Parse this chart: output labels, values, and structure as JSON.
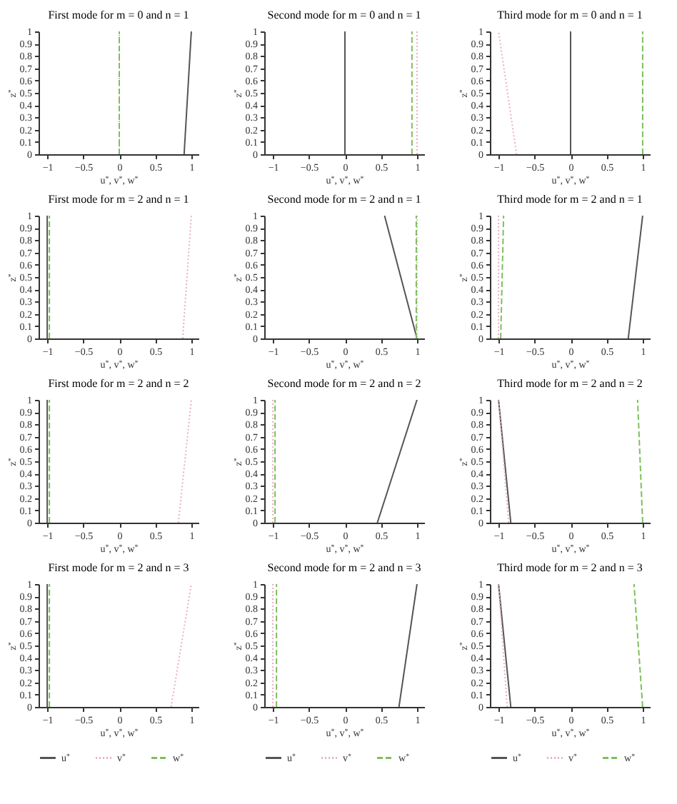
{
  "chart_data": [
    {
      "type": "line",
      "title": "First mode for m = 0 and n = 1",
      "xlabel": "u$^{*}$, v$^{*}$, w$^{*}$",
      "ylabel": "z$^{*}$",
      "xlim": [
        -1.12,
        1.1
      ],
      "xticks": [
        -1,
        -0.5,
        0,
        0.5,
        1
      ],
      "ylim": [
        0,
        1
      ],
      "yticks": [
        0,
        0.1,
        0.2,
        0.3,
        0.4,
        0.5,
        0.6,
        0.7,
        0.8,
        0.9,
        1
      ],
      "series": [
        {
          "color": "#555555",
          "line_style": "solid",
          "x": [
            0.9,
            1
          ],
          "values": [
            0,
            1
          ]
        },
        {
          "color": "#e8b0c0",
          "line_style": "dotted",
          "x": [
            0,
            0
          ],
          "values": [
            0,
            1
          ]
        },
        {
          "color": "#7cc05a",
          "line_style": "dashed",
          "x": [
            0,
            0
          ],
          "values": [
            0,
            1
          ]
        }
      ]
    },
    {
      "type": "line",
      "title": "Second mode for m = 0 and n = 1",
      "xlabel": "u$^{*}$, v$^{*}$, w$^{*}$",
      "ylabel": "z$^{*}$",
      "xlim": [
        -1.12,
        1.1
      ],
      "xticks": [
        -1,
        -0.5,
        0,
        0.5,
        1
      ],
      "ylim": [
        0,
        1
      ],
      "yticks": [
        0,
        0.1,
        0.2,
        0.3,
        0.4,
        0.5,
        0.6,
        0.7,
        0.8,
        0.9,
        1
      ],
      "series": [
        {
          "color": "#555555",
          "line_style": "solid",
          "x": [
            0,
            0
          ],
          "values": [
            0,
            1
          ]
        },
        {
          "color": "#e8b0c0",
          "line_style": "dotted",
          "x": [
            1,
            1
          ],
          "values": [
            0,
            1
          ]
        },
        {
          "color": "#7cc05a",
          "line_style": "dashed",
          "x": [
            0.93,
            0.93
          ],
          "values": [
            0,
            1
          ]
        }
      ]
    },
    {
      "type": "line",
      "title": "Third mode for m = 0 and n = 1",
      "xlabel": "u$^{*}$, v$^{*}$, w$^{*}$",
      "ylabel": "z$^{*}$",
      "xlim": [
        -1.12,
        1.1
      ],
      "xticks": [
        -1,
        -0.5,
        0,
        0.5,
        1
      ],
      "ylim": [
        0,
        1
      ],
      "yticks": [
        0,
        0.1,
        0.2,
        0.3,
        0.4,
        0.5,
        0.6,
        0.7,
        0.8,
        0.9,
        1
      ],
      "series": [
        {
          "color": "#555555",
          "line_style": "solid",
          "x": [
            0,
            0
          ],
          "values": [
            0,
            1
          ]
        },
        {
          "color": "#e8b0c0",
          "line_style": "dotted",
          "x": [
            -0.75,
            -1
          ],
          "values": [
            0,
            1
          ]
        },
        {
          "color": "#7cc05a",
          "line_style": "dashed",
          "x": [
            1,
            1
          ],
          "values": [
            0,
            1
          ]
        }
      ]
    },
    {
      "type": "line",
      "title": "First mode for m = 2 and n = 1",
      "xlabel": "u$^{*}$, v$^{*}$, w$^{*}$",
      "ylabel": "z$^{*}$",
      "xlim": [
        -1.12,
        1.1
      ],
      "xticks": [
        -1,
        -0.5,
        0,
        0.5,
        1
      ],
      "ylim": [
        0,
        1
      ],
      "yticks": [
        0,
        0.1,
        0.2,
        0.3,
        0.4,
        0.5,
        0.6,
        0.7,
        0.8,
        0.9,
        1
      ],
      "series": [
        {
          "color": "#555555",
          "line_style": "solid",
          "x": [
            -1,
            -1
          ],
          "values": [
            0,
            1
          ]
        },
        {
          "color": "#e8b0c0",
          "line_style": "dotted",
          "x": [
            0.88,
            1
          ],
          "values": [
            0,
            1
          ]
        },
        {
          "color": "#7cc05a",
          "line_style": "dashed",
          "x": [
            -0.97,
            -0.97
          ],
          "values": [
            0,
            1
          ]
        }
      ]
    },
    {
      "type": "line",
      "title": "Second mode for m = 2 and n = 1",
      "xlabel": "u$^{*}$, v$^{*}$, w$^{*}$",
      "ylabel": "z$^{*}$",
      "xlim": [
        -1.12,
        1.1
      ],
      "xticks": [
        -1,
        -0.5,
        0,
        0.5,
        1
      ],
      "ylim": [
        0,
        1
      ],
      "yticks": [
        0,
        0.1,
        0.2,
        0.3,
        0.4,
        0.5,
        0.6,
        0.7,
        0.8,
        0.9,
        1
      ],
      "series": [
        {
          "color": "#555555",
          "line_style": "solid",
          "x": [
            1,
            0.55
          ],
          "values": [
            0,
            1
          ]
        },
        {
          "color": "#e8b0c0",
          "line_style": "dotted",
          "x": [
            1,
            1
          ],
          "values": [
            0,
            1
          ]
        },
        {
          "color": "#7cc05a",
          "line_style": "dashed",
          "x": [
            0.99,
            0.99
          ],
          "values": [
            0,
            1
          ]
        }
      ]
    },
    {
      "type": "line",
      "title": "Third mode for m = 2 and n = 1",
      "xlabel": "u$^{*}$, v$^{*}$, w$^{*}$",
      "ylabel": "z$^{*}$",
      "xlim": [
        -1.12,
        1.1
      ],
      "xticks": [
        -1,
        -0.5,
        0,
        0.5,
        1
      ],
      "ylim": [
        0,
        1
      ],
      "yticks": [
        0,
        0.1,
        0.2,
        0.3,
        0.4,
        0.5,
        0.6,
        0.7,
        0.8,
        0.9,
        1
      ],
      "series": [
        {
          "color": "#555555",
          "line_style": "solid",
          "x": [
            0.8,
            1
          ],
          "values": [
            0,
            1
          ]
        },
        {
          "color": "#e8b0c0",
          "line_style": "dotted",
          "x": [
            -1,
            -1
          ],
          "values": [
            0,
            1
          ]
        },
        {
          "color": "#7cc05a",
          "line_style": "dashed",
          "x": [
            -0.97,
            -0.93
          ],
          "values": [
            0,
            1
          ]
        }
      ]
    },
    {
      "type": "line",
      "title": "First mode for m = 2 and n = 2",
      "xlabel": "u$^{*}$, v$^{*}$, w$^{*}$",
      "ylabel": "z$^{*}$",
      "xlim": [
        -1.12,
        1.1
      ],
      "xticks": [
        -1,
        -0.5,
        0,
        0.5,
        1
      ],
      "ylim": [
        0,
        1
      ],
      "yticks": [
        0,
        0.1,
        0.2,
        0.3,
        0.4,
        0.5,
        0.6,
        0.7,
        0.8,
        0.9,
        1
      ],
      "series": [
        {
          "color": "#555555",
          "line_style": "solid",
          "x": [
            -1,
            -1
          ],
          "values": [
            0,
            1
          ]
        },
        {
          "color": "#e8b0c0",
          "line_style": "dotted",
          "x": [
            0.82,
            1
          ],
          "values": [
            0,
            1
          ]
        },
        {
          "color": "#7cc05a",
          "line_style": "dashed",
          "x": [
            -0.97,
            -0.97
          ],
          "values": [
            0,
            1
          ]
        }
      ]
    },
    {
      "type": "line",
      "title": "Second mode for m = 2 and n = 2",
      "xlabel": "u$^{*}$, v$^{*}$, w$^{*}$",
      "ylabel": "z$^{*}$",
      "xlim": [
        -1.12,
        1.1
      ],
      "xticks": [
        -1,
        -0.5,
        0,
        0.5,
        1
      ],
      "ylim": [
        0,
        1
      ],
      "yticks": [
        0,
        0.1,
        0.2,
        0.3,
        0.4,
        0.5,
        0.6,
        0.7,
        0.8,
        0.9,
        1
      ],
      "series": [
        {
          "color": "#555555",
          "line_style": "solid",
          "x": [
            0.45,
            1
          ],
          "values": [
            0,
            1
          ]
        },
        {
          "color": "#e8b0c0",
          "line_style": "dotted",
          "x": [
            -1,
            -1
          ],
          "values": [
            0,
            1
          ]
        },
        {
          "color": "#7cc05a",
          "line_style": "dashed",
          "x": [
            -0.97,
            -0.97
          ],
          "values": [
            0,
            1
          ]
        }
      ]
    },
    {
      "type": "line",
      "title": "Third mode for m = 2 and n = 2",
      "xlabel": "u$^{*}$, v$^{*}$, w$^{*}$",
      "ylabel": "z$^{*}$",
      "xlim": [
        -1.12,
        1.1
      ],
      "xticks": [
        -1,
        -0.5,
        0,
        0.5,
        1
      ],
      "ylim": [
        0,
        1
      ],
      "yticks": [
        0,
        0.1,
        0.2,
        0.3,
        0.4,
        0.5,
        0.6,
        0.7,
        0.8,
        0.9,
        1
      ],
      "series": [
        {
          "color": "#555555",
          "line_style": "solid",
          "x": [
            -0.83,
            -1
          ],
          "values": [
            0,
            1
          ]
        },
        {
          "color": "#e8b0c0",
          "line_style": "dotted",
          "x": [
            -0.86,
            -1
          ],
          "values": [
            0,
            1
          ]
        },
        {
          "color": "#7cc05a",
          "line_style": "dashed",
          "x": [
            1,
            0.93
          ],
          "values": [
            0,
            1
          ]
        }
      ]
    },
    {
      "type": "line",
      "title": "First mode for m = 2 and n = 3",
      "xlabel": "u$^{*}$, v$^{*}$, w$^{*}$",
      "ylabel": "z$^{*}$",
      "xlim": [
        -1.12,
        1.1
      ],
      "xticks": [
        -1,
        -0.5,
        0,
        0.5,
        1
      ],
      "ylim": [
        0,
        1
      ],
      "yticks": [
        0,
        0.1,
        0.2,
        0.3,
        0.4,
        0.5,
        0.6,
        0.7,
        0.8,
        0.9,
        1
      ],
      "legend": "bottom",
      "series": [
        {
          "name": "u$^{*}$",
          "color": "#555555",
          "line_style": "solid",
          "x": [
            -1,
            -1
          ],
          "values": [
            0,
            1
          ]
        },
        {
          "name": "v$^{*}$",
          "color": "#e8b0c0",
          "line_style": "dotted",
          "x": [
            0.72,
            1
          ],
          "values": [
            0,
            1
          ]
        },
        {
          "name": "w$^{*}$",
          "color": "#7cc05a",
          "line_style": "dashed",
          "x": [
            -0.97,
            -0.97
          ],
          "values": [
            0,
            1
          ]
        }
      ]
    },
    {
      "type": "line",
      "title": "Second mode for m = 2 and n = 3",
      "xlabel": "u$^{*}$, v$^{*}$, w$^{*}$",
      "ylabel": "z$^{*}$",
      "xlim": [
        -1.12,
        1.1
      ],
      "xticks": [
        -1,
        -0.5,
        0,
        0.5,
        1
      ],
      "ylim": [
        0,
        1
      ],
      "yticks": [
        0,
        0.1,
        0.2,
        0.3,
        0.4,
        0.5,
        0.6,
        0.7,
        0.8,
        0.9,
        1
      ],
      "legend": "bottom",
      "series": [
        {
          "name": "u$^{*}$",
          "color": "#555555",
          "line_style": "solid",
          "x": [
            0.75,
            1
          ],
          "values": [
            0,
            1
          ]
        },
        {
          "name": "v$^{*}$",
          "color": "#e8b0c0",
          "line_style": "dotted",
          "x": [
            -1,
            -1
          ],
          "values": [
            0,
            1
          ]
        },
        {
          "name": "w$^{*}$",
          "color": "#7cc05a",
          "line_style": "dashed",
          "x": [
            -0.95,
            -0.95
          ],
          "values": [
            0,
            1
          ]
        }
      ]
    },
    {
      "type": "line",
      "title": "Third mode for m = 2 and n = 3",
      "xlabel": "u$^{*}$, v$^{*}$, w$^{*}$",
      "ylabel": "z$^{*}$",
      "xlim": [
        -1.12,
        1.1
      ],
      "xticks": [
        -1,
        -0.5,
        0,
        0.5,
        1
      ],
      "ylim": [
        0,
        1
      ],
      "yticks": [
        0,
        0.1,
        0.2,
        0.3,
        0.4,
        0.5,
        0.6,
        0.7,
        0.8,
        0.9,
        1
      ],
      "legend": "bottom",
      "series": [
        {
          "name": "u$^{*}$",
          "color": "#555555",
          "line_style": "solid",
          "x": [
            -0.83,
            -1
          ],
          "values": [
            0,
            1
          ]
        },
        {
          "name": "v$^{*}$",
          "color": "#e8b0c0",
          "line_style": "dotted",
          "x": [
            -0.88,
            -1
          ],
          "values": [
            0,
            1
          ]
        },
        {
          "name": "w$^{*}$",
          "color": "#7cc05a",
          "line_style": "dashed",
          "x": [
            1,
            0.88
          ],
          "values": [
            0,
            1
          ]
        }
      ]
    }
  ]
}
